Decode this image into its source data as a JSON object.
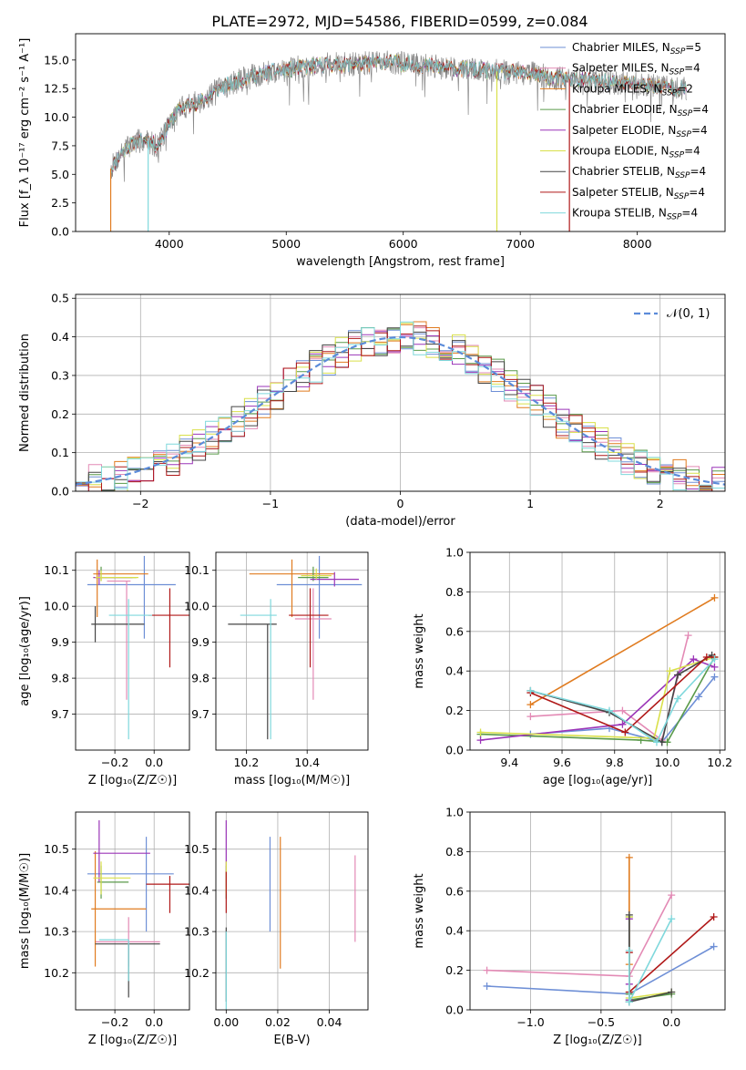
{
  "figure_title": "PLATE=2972, MJD=54586, FIBERID=0599, z=0.084",
  "colors": {
    "Chabrier MILES": "#6e8fd6",
    "Salpeter MILES": "#e38ab5",
    "Kroupa MILES": "#e07b1f",
    "Chabrier ELODIE": "#5a9a4a",
    "Salpeter ELODIE": "#9b35b8",
    "Kroupa ELODIE": "#d9e04a",
    "Chabrier STELIB": "#454545",
    "Salpeter STELIB": "#b01818",
    "Kroupa STELIB": "#7fd8dc",
    "observed": "#888888",
    "normal": "#5b8bd9"
  },
  "chart_data": [
    {
      "id": "spectrum",
      "type": "line",
      "title": "PLATE=2972, MJD=54586, FIBERID=0599, z=0.084",
      "xlabel": "wavelength [Angstrom, rest frame]",
      "ylabel": "Flux [f_λ 10⁻¹⁷ erg cm⁻² s⁻¹ A⁻¹]",
      "xlim": [
        3200,
        8750
      ],
      "ylim": [
        0,
        17.3
      ],
      "xticks": [
        4000,
        5000,
        6000,
        7000,
        8000
      ],
      "yticks": [
        0.0,
        2.5,
        5.0,
        7.5,
        10.0,
        12.5,
        15.0
      ],
      "grid": false,
      "legend_position": "top-right",
      "legend": [
        {
          "label": "Chabrier MILES, N",
          "sub": "SSP",
          "suffix": "=5",
          "key": "Chabrier MILES"
        },
        {
          "label": "Salpeter MILES, N",
          "sub": "SSP",
          "suffix": "=4",
          "key": "Salpeter MILES"
        },
        {
          "label": "Kroupa MILES, N",
          "sub": "SSP",
          "suffix": "=2",
          "key": "Kroupa MILES"
        },
        {
          "label": "Chabrier ELODIE, N",
          "sub": "SSP",
          "suffix": "=4",
          "key": "Chabrier ELODIE"
        },
        {
          "label": "Salpeter ELODIE, N",
          "sub": "SSP",
          "suffix": "=4",
          "key": "Salpeter ELODIE"
        },
        {
          "label": "Kroupa ELODIE, N",
          "sub": "SSP",
          "suffix": "=4",
          "key": "Kroupa ELODIE"
        },
        {
          "label": "Chabrier STELIB, N",
          "sub": "SSP",
          "suffix": "=4",
          "key": "Chabrier STELIB"
        },
        {
          "label": "Salpeter STELIB, N",
          "sub": "SSP",
          "suffix": "=4",
          "key": "Salpeter STELIB"
        },
        {
          "label": "Kroupa STELIB, N",
          "sub": "SSP",
          "suffix": "=4",
          "key": "Kroupa STELIB"
        }
      ],
      "continuum": {
        "x": [
          3500,
          3600,
          3700,
          3800,
          3900,
          4000,
          4100,
          4200,
          4300,
          4400,
          4500,
          4700,
          4900,
          5100,
          5300,
          5500,
          5700,
          5900,
          6100,
          6300,
          6500,
          6700,
          6900,
          7100,
          7300,
          7500,
          7700,
          7900,
          8100,
          8300,
          8400
        ],
        "y": [
          5.5,
          7.0,
          7.8,
          8.0,
          7.5,
          9.5,
          10.8,
          11.2,
          11.5,
          12.3,
          12.8,
          13.6,
          14.0,
          14.3,
          14.6,
          14.6,
          14.7,
          14.8,
          14.6,
          14.4,
          14.2,
          14.1,
          13.9,
          13.8,
          13.4,
          13.3,
          13.1,
          13.0,
          12.8,
          12.6,
          12.5
        ]
      },
      "glitches": [
        {
          "model": "Kroupa ELODIE",
          "x": 6800,
          "y_min": 0
        },
        {
          "model": "Salpeter STELIB",
          "x": 7420,
          "y_min": 0
        },
        {
          "model": "Kroupa STELIB",
          "x": 3820,
          "y_min": 0
        },
        {
          "model": "Kroupa MILES",
          "x": 3500,
          "y_min": 0
        }
      ]
    },
    {
      "id": "residuals",
      "type": "histogram",
      "xlabel": "(data-model)/error",
      "ylabel": "Normed distribution",
      "xlim": [
        -2.5,
        2.5
      ],
      "ylim": [
        0,
        0.51
      ],
      "xticks": [
        -2,
        -1,
        0,
        1,
        2
      ],
      "yticks": [
        0.0,
        0.1,
        0.2,
        0.3,
        0.4,
        0.5
      ],
      "grid": true,
      "legend_position": "top-right",
      "normal_label": "𝒩(0, 1)",
      "bin_width": 0.1,
      "bin_start": -2.5
    },
    {
      "id": "age-vs-Z",
      "type": "errorbar",
      "xlabel": "Z [log₁₀(Z/Z☉)]",
      "ylabel": "age  [log₁₀(age/yr)]",
      "xlim": [
        -0.4,
        0.18
      ],
      "ylim": [
        9.6,
        10.15
      ],
      "xticks": [
        -0.2,
        0.0
      ],
      "yticks": [
        9.7,
        9.8,
        9.9,
        10.0,
        10.1
      ],
      "grid": true,
      "points": [
        {
          "model": "Chabrier MILES",
          "x": -0.05,
          "xerr": [
            0.29,
            0.16
          ],
          "y": 10.06,
          "yerr": [
            0.15,
            0.08
          ]
        },
        {
          "model": "Salpeter MILES",
          "x": -0.14,
          "xerr": [
            0.1,
            0.02
          ],
          "y": 10.07,
          "yerr": [
            0.33,
            0.0
          ]
        },
        {
          "model": "Kroupa MILES",
          "x": -0.29,
          "xerr": [
            0.02,
            0.26
          ],
          "y": 10.09,
          "yerr": [
            0.12,
            0.04
          ]
        },
        {
          "model": "Chabrier ELODIE",
          "x": -0.27,
          "xerr": [
            0.03,
            0.18
          ],
          "y": 10.08,
          "yerr": [
            0.01,
            0.03
          ]
        },
        {
          "model": "Salpeter ELODIE",
          "x": -0.28,
          "xerr": [
            0.03,
            0.17
          ],
          "y": 10.08,
          "yerr": [
            0.02,
            0.02
          ]
        },
        {
          "model": "Kroupa ELODIE",
          "x": -0.27,
          "xerr": [
            0.03,
            0.19
          ],
          "y": 10.08,
          "yerr": [
            0.01,
            0.02
          ]
        },
        {
          "model": "Chabrier STELIB",
          "x": -0.3,
          "xerr": [
            0.02,
            0.25
          ],
          "y": 9.95,
          "yerr": [
            0.05,
            0.05
          ]
        },
        {
          "model": "Salpeter STELIB",
          "x": 0.08,
          "xerr": [
            0.11,
            0.11
          ],
          "y": 9.975,
          "yerr": [
            0.145,
            0.075
          ]
        },
        {
          "model": "Kroupa STELIB",
          "x": -0.13,
          "xerr": [
            0.1,
            0.12
          ],
          "y": 9.975,
          "yerr": [
            0.345,
            0.045
          ]
        }
      ]
    },
    {
      "id": "age-vs-mass",
      "type": "errorbar",
      "xlabel": "mass [log₁₀(M/M☉)]",
      "ylabel": "",
      "xlim": [
        10.1,
        10.6
      ],
      "ylim": [
        9.6,
        10.15
      ],
      "xticks": [
        10.2,
        10.4
      ],
      "yticks": [
        9.7,
        9.8,
        9.9,
        10.0,
        10.1
      ],
      "grid": true,
      "points": [
        {
          "model": "Chabrier MILES",
          "x": 10.44,
          "xerr": [
            0.14,
            0.14
          ],
          "y": 10.06,
          "yerr": [
            0.15,
            0.08
          ]
        },
        {
          "model": "Salpeter MILES",
          "x": 10.42,
          "xerr": [
            0.06,
            0.06
          ],
          "y": 9.965,
          "yerr": [
            0.225,
            0.085
          ]
        },
        {
          "model": "Kroupa MILES",
          "x": 10.35,
          "xerr": [
            0.14,
            0.14
          ],
          "y": 10.09,
          "yerr": [
            0.12,
            0.04
          ]
        },
        {
          "model": "Chabrier ELODIE",
          "x": 10.42,
          "xerr": [
            0.05,
            0.05
          ],
          "y": 10.08,
          "yerr": [
            0.01,
            0.03
          ]
        },
        {
          "model": "Salpeter ELODIE",
          "x": 10.49,
          "xerr": [
            0.08,
            0.08
          ],
          "y": 10.075,
          "yerr": [
            0.02,
            0.02
          ]
        },
        {
          "model": "Kroupa ELODIE",
          "x": 10.43,
          "xerr": [
            0.05,
            0.05
          ],
          "y": 10.085,
          "yerr": [
            0.01,
            0.02
          ]
        },
        {
          "model": "Chabrier STELIB",
          "x": 10.27,
          "xerr": [
            0.13,
            0.03
          ],
          "y": 9.95,
          "yerr": [
            0.32,
            0.0
          ]
        },
        {
          "model": "Salpeter STELIB",
          "x": 10.41,
          "xerr": [
            0.07,
            0.06
          ],
          "y": 9.975,
          "yerr": [
            0.145,
            0.075
          ]
        },
        {
          "model": "Kroupa STELIB",
          "x": 10.28,
          "xerr": [
            0.1,
            0.02
          ],
          "y": 9.975,
          "yerr": [
            0.345,
            0.045
          ]
        }
      ]
    },
    {
      "id": "weight-vs-age",
      "type": "line",
      "xlabel": "age  [log₁₀(age/yr)]",
      "ylabel": "mass weight",
      "xlim": [
        9.25,
        10.22
      ],
      "ylim": [
        0,
        1.0
      ],
      "xticks": [
        9.4,
        9.6,
        9.8,
        10.0,
        10.2
      ],
      "yticks": [
        0.0,
        0.2,
        0.4,
        0.6,
        0.8,
        1.0
      ],
      "grid": true,
      "series": [
        {
          "model": "Chabrier MILES",
          "x": [
            9.48,
            9.78,
            9.98,
            10.12,
            10.18
          ],
          "y": [
            0.08,
            0.11,
            0.04,
            0.27,
            0.37
          ]
        },
        {
          "model": "Salpeter MILES",
          "x": [
            9.48,
            9.83,
            9.98,
            10.08
          ],
          "y": [
            0.17,
            0.2,
            0.05,
            0.58
          ]
        },
        {
          "model": "Kroupa MILES",
          "x": [
            9.48,
            10.18
          ],
          "y": [
            0.23,
            0.77
          ]
        },
        {
          "model": "Chabrier ELODIE",
          "x": [
            9.29,
            9.9,
            10.0,
            10.18
          ],
          "y": [
            0.08,
            0.05,
            0.04,
            0.47
          ]
        },
        {
          "model": "Salpeter ELODIE",
          "x": [
            9.29,
            9.83,
            10.1,
            10.18
          ],
          "y": [
            0.05,
            0.13,
            0.46,
            0.42
          ]
        },
        {
          "model": "Kroupa ELODIE",
          "x": [
            9.29,
            9.95,
            10.01,
            10.18
          ],
          "y": [
            0.09,
            0.06,
            0.4,
            0.47
          ]
        },
        {
          "model": "Chabrier STELIB",
          "x": [
            9.48,
            9.78,
            9.98,
            10.04,
            10.17
          ],
          "y": [
            0.3,
            0.19,
            0.04,
            0.38,
            0.48
          ]
        },
        {
          "model": "Salpeter STELIB",
          "x": [
            9.48,
            9.84,
            10.15,
            10.18
          ],
          "y": [
            0.29,
            0.09,
            0.47,
            0.47
          ]
        },
        {
          "model": "Kroupa STELIB",
          "x": [
            9.48,
            9.78,
            9.96,
            10.04,
            10.18
          ],
          "y": [
            0.3,
            0.2,
            0.04,
            0.26,
            0.46
          ]
        }
      ]
    },
    {
      "id": "mass-vs-Z",
      "type": "errorbar",
      "xlabel": "Z [log₁₀(Z/Z☉)]",
      "ylabel": "mass [log₁₀(M/M☉)]",
      "xlim": [
        -0.4,
        0.18
      ],
      "ylim": [
        10.11,
        10.59
      ],
      "xticks": [
        -0.2,
        0.0
      ],
      "yticks": [
        10.2,
        10.3,
        10.4,
        10.5
      ],
      "grid": true,
      "points": [
        {
          "model": "Chabrier MILES",
          "x": -0.04,
          "xerr": [
            0.3,
            0.14
          ],
          "y": 10.44,
          "yerr": [
            0.14,
            0.09
          ]
        },
        {
          "model": "Salpeter MILES",
          "x": -0.13,
          "xerr": [
            0.17,
            0.16
          ],
          "y": 10.275,
          "yerr": [
            0.06,
            0.06
          ]
        },
        {
          "model": "Kroupa MILES",
          "x": -0.3,
          "xerr": [
            0.02,
            0.26
          ],
          "y": 10.355,
          "yerr": [
            0.14,
            0.14
          ]
        },
        {
          "model": "Chabrier ELODIE",
          "x": -0.27,
          "xerr": [
            0.02,
            0.14
          ],
          "y": 10.42,
          "yerr": [
            0.04,
            0.04
          ]
        },
        {
          "model": "Salpeter ELODIE",
          "x": -0.28,
          "xerr": [
            0.03,
            0.26
          ],
          "y": 10.49,
          "yerr": [
            0.07,
            0.08
          ]
        },
        {
          "model": "Kroupa ELODIE",
          "x": -0.27,
          "xerr": [
            0.04,
            0.15
          ],
          "y": 10.43,
          "yerr": [
            0.04,
            0.04
          ]
        },
        {
          "model": "Chabrier STELIB",
          "x": -0.13,
          "xerr": [
            0.17,
            0.16
          ],
          "y": 10.27,
          "yerr": [
            0.13,
            0.0
          ]
        },
        {
          "model": "Salpeter STELIB",
          "x": 0.08,
          "xerr": [
            0.12,
            0.11
          ],
          "y": 10.415,
          "yerr": [
            0.07,
            0.02
          ]
        },
        {
          "model": "Kroupa STELIB",
          "x": -0.13,
          "xerr": [
            0.15,
            0.0
          ],
          "y": 10.28,
          "yerr": [
            0.1,
            0.0
          ]
        }
      ]
    },
    {
      "id": "mass-vs-EBV",
      "type": "errorbar",
      "xlabel": "E(B-V)",
      "ylabel": "",
      "xlim": [
        -0.004,
        0.055
      ],
      "ylim": [
        10.11,
        10.59
      ],
      "xticks": [
        0.0,
        0.02,
        0.04
      ],
      "yticks": [
        10.2,
        10.3,
        10.4,
        10.5
      ],
      "grid": true,
      "points": [
        {
          "model": "Chabrier MILES",
          "x": 0.017,
          "xerr": [
            0,
            0
          ],
          "y": 10.415,
          "yerr": [
            0.115,
            0.115
          ]
        },
        {
          "model": "Salpeter MILES",
          "x": 0.05,
          "xerr": [
            0,
            0
          ],
          "y": 10.38,
          "yerr": [
            0.105,
            0.105
          ]
        },
        {
          "model": "Kroupa MILES",
          "x": 0.021,
          "xerr": [
            0,
            0
          ],
          "y": 10.37,
          "yerr": [
            0.16,
            0.16
          ]
        },
        {
          "model": "Chabrier ELODIE",
          "x": 0.0,
          "xerr": [
            0,
            0
          ],
          "y": 10.42,
          "yerr": [
            0.04,
            0.04
          ]
        },
        {
          "model": "Salpeter ELODIE",
          "x": 0.0,
          "xerr": [
            0,
            0
          ],
          "y": 10.49,
          "yerr": [
            0.08,
            0.08
          ]
        },
        {
          "model": "Kroupa ELODIE",
          "x": 0.0,
          "xerr": [
            0,
            0
          ],
          "y": 10.43,
          "yerr": [
            0.04,
            0.04
          ]
        },
        {
          "model": "Chabrier STELIB",
          "x": 0.0,
          "xerr": [
            0,
            0
          ],
          "y": 10.22,
          "yerr": [
            0.09,
            0.09
          ]
        },
        {
          "model": "Salpeter STELIB",
          "x": 0.0,
          "xerr": [
            0,
            0
          ],
          "y": 10.395,
          "yerr": [
            0.05,
            0.05
          ]
        },
        {
          "model": "Kroupa STELIB",
          "x": 0.0,
          "xerr": [
            0,
            0
          ],
          "y": 10.2,
          "yerr": [
            0.1,
            0.1
          ]
        }
      ]
    },
    {
      "id": "weight-vs-Z",
      "type": "line",
      "xlabel": "Z [log₁₀(Z/Z☉)]",
      "ylabel": "mass weight",
      "xlim": [
        -1.43,
        0.38
      ],
      "ylim": [
        0,
        1.0
      ],
      "xticks": [
        -1.0,
        -0.5,
        0.0
      ],
      "yticks": [
        0.0,
        0.2,
        0.4,
        0.6,
        0.8,
        1.0
      ],
      "grid": true,
      "series": [
        {
          "model": "Chabrier MILES",
          "x": [
            -1.31,
            -0.3,
            0.3
          ],
          "y": [
            0.12,
            0.08,
            0.32
          ]
        },
        {
          "model": "Salpeter MILES",
          "x": [
            -1.31,
            -0.3,
            0.0
          ],
          "y": [
            0.2,
            0.17,
            0.58
          ]
        },
        {
          "model": "Kroupa MILES",
          "x": [
            -0.3,
            -0.3
          ],
          "y": [
            0.23,
            0.77
          ]
        },
        {
          "model": "Chabrier ELODIE",
          "x": [
            -0.3,
            -0.3,
            -0.3,
            0.0
          ],
          "y": [
            0.08,
            0.47,
            0.05,
            0.08
          ]
        },
        {
          "model": "Salpeter ELODIE",
          "x": [
            -0.3,
            -0.3,
            -0.3
          ],
          "y": [
            0.05,
            0.46,
            0.13
          ]
        },
        {
          "model": "Kroupa ELODIE",
          "x": [
            -0.3,
            -0.3,
            -0.3,
            0.0
          ],
          "y": [
            0.09,
            0.47,
            0.06,
            0.09
          ]
        },
        {
          "model": "Chabrier STELIB",
          "x": [
            -0.3,
            -0.3,
            0.0
          ],
          "y": [
            0.48,
            0.04,
            0.09
          ]
        },
        {
          "model": "Salpeter STELIB",
          "x": [
            -0.3,
            -0.3,
            0.3
          ],
          "y": [
            0.29,
            0.09,
            0.47
          ]
        },
        {
          "model": "Kroupa STELIB",
          "x": [
            -0.3,
            -0.3,
            0.0
          ],
          "y": [
            0.3,
            0.04,
            0.46
          ]
        }
      ]
    }
  ]
}
